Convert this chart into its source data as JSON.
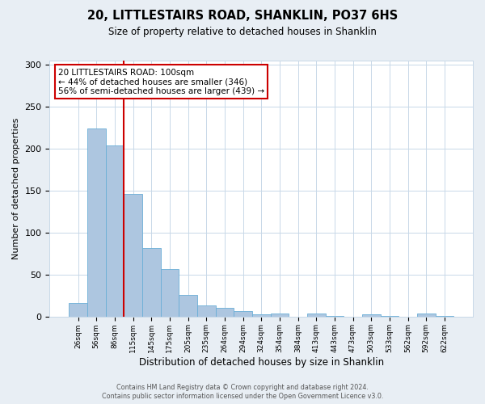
{
  "title": "20, LITTLESTAIRS ROAD, SHANKLIN, PO37 6HS",
  "subtitle": "Size of property relative to detached houses in Shanklin",
  "xlabel": "Distribution of detached houses by size in Shanklin",
  "ylabel": "Number of detached properties",
  "bar_labels": [
    "26sqm",
    "56sqm",
    "86sqm",
    "115sqm",
    "145sqm",
    "175sqm",
    "205sqm",
    "235sqm",
    "264sqm",
    "294sqm",
    "324sqm",
    "354sqm",
    "384sqm",
    "413sqm",
    "443sqm",
    "473sqm",
    "503sqm",
    "533sqm",
    "562sqm",
    "592sqm",
    "622sqm"
  ],
  "bar_heights": [
    17,
    224,
    204,
    146,
    82,
    57,
    26,
    14,
    11,
    7,
    3,
    4,
    0,
    4,
    1,
    0,
    3,
    1,
    0,
    4,
    1
  ],
  "bar_color": "#adc6e0",
  "bar_edgecolor": "#6aaed6",
  "vline_x": 2.5,
  "vline_color": "#cc0000",
  "annotation_title": "20 LITTLESTAIRS ROAD: 100sqm",
  "annotation_line1": "← 44% of detached houses are smaller (346)",
  "annotation_line2": "56% of semi-detached houses are larger (439) →",
  "annotation_box_color": "#cc0000",
  "ylim": [
    0,
    305
  ],
  "yticks": [
    0,
    50,
    100,
    150,
    200,
    250,
    300
  ],
  "footer1": "Contains HM Land Registry data © Crown copyright and database right 2024.",
  "footer2": "Contains public sector information licensed under the Open Government Licence v3.0.",
  "bg_color": "#e8eef4",
  "plot_bg_color": "#ffffff",
  "grid_color": "#c8d8e8"
}
